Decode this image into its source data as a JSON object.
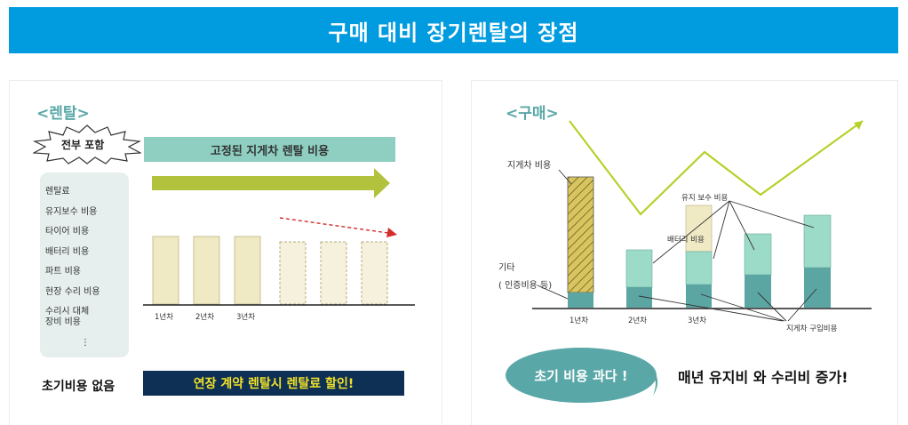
{
  "banner": {
    "title": "구매 대비 장기렌탈의 장점"
  },
  "rental": {
    "title": "<렌탈>",
    "badge": "전부 포함",
    "fixed_cost_label": "고정된 지게차 렌탈 비용",
    "items": [
      "렌탈료",
      "유지보수 비용",
      "타이어 비용",
      "배터리 비용",
      "파트 비용",
      "현장 수리 비용",
      "수리시 대체\n장비 비용",
      "⋮"
    ],
    "year_labels": [
      "1년차",
      "2년차",
      "3년차"
    ],
    "no_initial_cost": "초기비용 없음",
    "promo": "연장 계약 렌탈시 렌탈료 할인!",
    "colors": {
      "bar_fill": "#efe9c4",
      "bar_dashed_fill": "#f5f1dc",
      "arrow_green": "#b3c23d",
      "dashed_red": "#d62b2b"
    }
  },
  "purchase": {
    "title": "<구매>",
    "forklift_cost_label": "지게차 비용",
    "maintenance_label": "유지 보수 비용",
    "battery_label": "배터리 비용",
    "other_label_1": "기타",
    "other_label_2": "( 인증비용 등)",
    "purchase_cost_label": "지게차 구입비용",
    "year_labels": [
      "1년차",
      "2년차",
      "3년차"
    ],
    "callout": "초기 비용 과다 !",
    "footnote": "매년 유지비 와 수리비 증가!",
    "colors": {
      "teal_dark": "#5ba5a3",
      "teal_light": "#9ddbc9",
      "hatch_fill": "#d9c560",
      "trend_line": "#b5d12a"
    }
  },
  "chart_data": [
    {
      "type": "bar",
      "title": "",
      "categories": [
        "1년차",
        "2년차",
        "3년차",
        "",
        "",
        ""
      ],
      "series": [
        {
          "values": [
            1,
            1,
            1,
            1,
            1,
            1
          ]
        }
      ],
      "note": "equal fixed rental cost each year; bars 4-6 dashed with a downward dashed arrow"
    },
    {
      "type": "bar",
      "title": "",
      "categories": [
        "1년차",
        "2년차",
        "3년차",
        "",
        ""
      ],
      "series": [
        {
          "name": "지게차 구입비용",
          "values": [
            1.0,
            1.2,
            1.4,
            2.0,
            2.6
          ]
        },
        {
          "name": "유지 보수 비용",
          "values": [
            0,
            2.4,
            2.0,
            2.6,
            3.3
          ]
        },
        {
          "name": "배터리 비용",
          "values": [
            0,
            0,
            2.7,
            0,
            0
          ]
        },
        {
          "name": "지게차 비용",
          "values": [
            7.3,
            0,
            0,
            0,
            0
          ]
        }
      ],
      "note": "stacked; trend line zigzags upward"
    }
  ]
}
